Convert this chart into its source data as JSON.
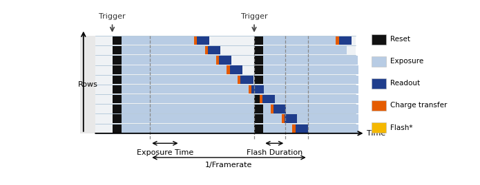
{
  "n_rows": 10,
  "colors": {
    "reset": "#111111",
    "exposure": "#b8cce4",
    "readout": "#1f3d8c",
    "charge_transfer": "#e55b00",
    "flash": "#f5b800",
    "gray_bg": "#e0e0e0",
    "white_bg": "#f0f2f5",
    "grid_line": "#a0bbd0",
    "dashed_line": "#999999"
  },
  "legend_labels": [
    "Reset",
    "Exposure",
    "Readout",
    "Charge transfer",
    "Flash*"
  ],
  "legend_colors": [
    "#111111",
    "#b8cce4",
    "#1f3d8c",
    "#e55b00",
    "#f5b800"
  ],
  "time_label": "Time",
  "rows_label": "Rows",
  "exposure_time_label": "Exposure Time",
  "flash_duration_label": "Flash Duration",
  "framerate_label": "1/Framerate",
  "trigger_label": "Trigger"
}
